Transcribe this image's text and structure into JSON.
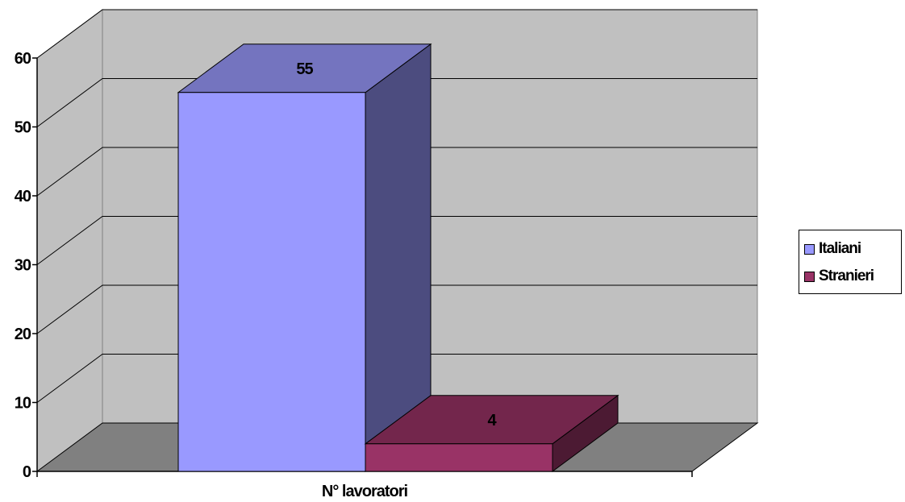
{
  "chart_data": {
    "type": "bar",
    "categories": [
      "N° lavoratori"
    ],
    "xlabel": "",
    "ylabel": "",
    "ylim": [
      0,
      60
    ],
    "yticks": [
      0,
      10,
      20,
      30,
      40,
      50,
      60
    ],
    "grid": true,
    "three_d": true,
    "legend_position": "right",
    "series": [
      {
        "name": "Italiani",
        "values": [
          55
        ],
        "data_labels": [
          "55"
        ]
      },
      {
        "name": "Stranieri",
        "values": [
          4
        ],
        "data_labels": [
          "4"
        ]
      }
    ]
  },
  "colors": {
    "wall": "#c0c0c0",
    "floor": "#808080",
    "italiani_front": "#9999ff",
    "italiani_top": "#7474bf",
    "italiani_side": "#4c4c7f",
    "stranieri_front": "#993366",
    "stranieri_top": "#73264c",
    "stranieri_side": "#4c1a33"
  }
}
